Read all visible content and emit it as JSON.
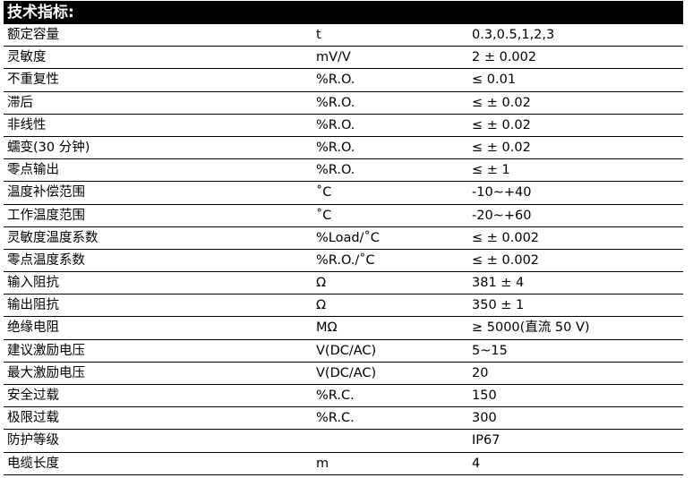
{
  "title": "技术指标:",
  "rows": [
    {
      "name": "额定容量",
      "unit": "t",
      "value": "0.3,0.5,1,2,3"
    },
    {
      "name": "灵敏度",
      "unit": "mV/V",
      "value": "2 ± 0.002"
    },
    {
      "name": "不重复性",
      "unit": "%R.O.",
      "value": "≤ 0.01"
    },
    {
      "name": "滞后",
      "unit": "%R.O.",
      "value": "≤ ± 0.02"
    },
    {
      "name": "非线性",
      "unit": "%R.O.",
      "value": "≤ ± 0.02"
    },
    {
      "name": "蠕变(30 分钟)",
      "unit": "%R.O.",
      "value": "≤ ± 0.02"
    },
    {
      "name": "零点输出",
      "unit": "%R.O.",
      "value": "≤ ± 1"
    },
    {
      "name": "温度补偿范围",
      "unit": "˚C",
      "value": "-10~+40"
    },
    {
      "name": "工作温度范围",
      "unit": "˚C",
      "value": "-20~+60"
    },
    {
      "name": "灵敏度温度系数",
      "unit": "%Load/˚C",
      "value": "≤ ± 0.002"
    },
    {
      "name": "零点温度系数",
      "unit": "%R.O./˚C",
      "value": "≤ ± 0.002"
    },
    {
      "name": "输入阻抗",
      "unit": "Ω",
      "value": "381 ± 4"
    },
    {
      "name": "输出阻抗",
      "unit": "Ω",
      "value": "350 ± 1"
    },
    {
      "name": "绝缘电阻",
      "unit": "MΩ",
      "value": "≥ 5000(直流 50 V)"
    },
    {
      "name": "建议激励电压",
      "unit": "V(DC/AC)",
      "value": "5~15"
    },
    {
      "name": "最大激励电压",
      "unit": "V(DC/AC)",
      "value": "20"
    },
    {
      "name": "安全过载",
      "unit": "%R.C.",
      "value": "150"
    },
    {
      "name": "极限过载",
      "unit": "%R.C.",
      "value": "300"
    },
    {
      "name": "防护等级",
      "unit": "",
      "value": "IP67"
    },
    {
      "name": "电缆长度",
      "unit": "m",
      "value": "4"
    }
  ]
}
